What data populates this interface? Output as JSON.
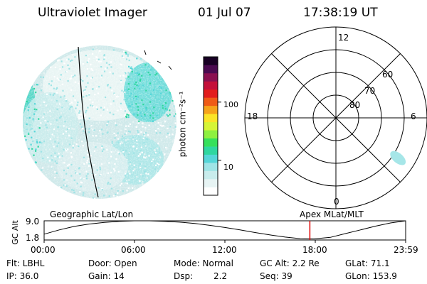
{
  "header": {
    "instrument": "Ultraviolet Imager",
    "date": "01 Jul 07",
    "time": "17:38:19 UT"
  },
  "colors": {
    "intensity_scale": [
      "#ffffff",
      "#e7f4f4",
      "#c8ecec",
      "#9fe4e6",
      "#55d6d8",
      "#2fd7a0",
      "#36e05b",
      "#8ef040",
      "#d6f536",
      "#fbe427",
      "#f6a31a",
      "#ef5b16",
      "#e21d1d",
      "#c4103a",
      "#8a1050",
      "#4a0a50",
      "#180024"
    ],
    "footprint": "#b7e9ee",
    "spot": "#a6e6e8",
    "current_time_marker": "#e00000"
  },
  "chart_data": [
    {
      "type": "heatmap",
      "panel": "Earth view image",
      "projection_label": "Geographic Lat/Lon",
      "bright_regions": [
        "left limb",
        "upper right (cyan/green)",
        "central band (light)"
      ]
    },
    {
      "type": "heatmap",
      "panel": "Color bar",
      "ylabel": "photon cm⁻²s⁻¹",
      "tick_labels": [
        "100",
        "10"
      ],
      "tick_values": [
        100,
        10
      ],
      "scale": "log",
      "ylim": [
        2.5,
        600
      ]
    },
    {
      "type": "scatter",
      "panel": "Polar MLat/MLT dial",
      "projection_label": "Apex  MLat/MLT",
      "mlt_labels": [
        "12",
        "18",
        "6",
        "0"
      ],
      "mlat_labels": [
        "60",
        "70",
        "80"
      ],
      "mlat_rings": [
        50,
        60,
        70,
        80
      ],
      "emission_spots": [
        {
          "mlt": 3.8,
          "mlat": 57.5
        }
      ]
    },
    {
      "type": "line",
      "panel": "Orbit altitude",
      "ylabel": "GC Alt",
      "ytick_labels": [
        "9.0",
        "1.8"
      ],
      "ylim": [
        1.8,
        9.0
      ],
      "xtick_labels": [
        "00:00",
        "06:00",
        "12:00",
        "18:00",
        "23:59"
      ],
      "xlim_hours": [
        0,
        24
      ],
      "x_hours": [
        0,
        1,
        2,
        3,
        4,
        5,
        6,
        7,
        8,
        9,
        10,
        11,
        12,
        13,
        14,
        15,
        16,
        17,
        17.9,
        19,
        20,
        21,
        22,
        23,
        24
      ],
      "y_re": [
        4.0,
        5.6,
        6.9,
        7.8,
        8.4,
        8.8,
        9.0,
        9.0,
        8.8,
        8.5,
        8.0,
        7.3,
        6.5,
        5.6,
        4.6,
        3.7,
        2.9,
        2.3,
        2.2,
        2.8,
        4.2,
        5.6,
        7.0,
        8.2,
        9.0
      ],
      "current_time_hours": 17.64
    }
  ],
  "info": {
    "flt": "Flt: LBHL",
    "ip": "IP: 36.0",
    "door": "Door: Open",
    "gain": "Gain: 14",
    "mode": "Mode: Normal",
    "dsp_label": "Dsp:",
    "dsp_value": "2.2",
    "gc_alt": "GC Alt: 2.2 Re",
    "seq": "Seq: 39",
    "glat": "GLat:  71.1",
    "glon": "GLon: 153.9"
  }
}
